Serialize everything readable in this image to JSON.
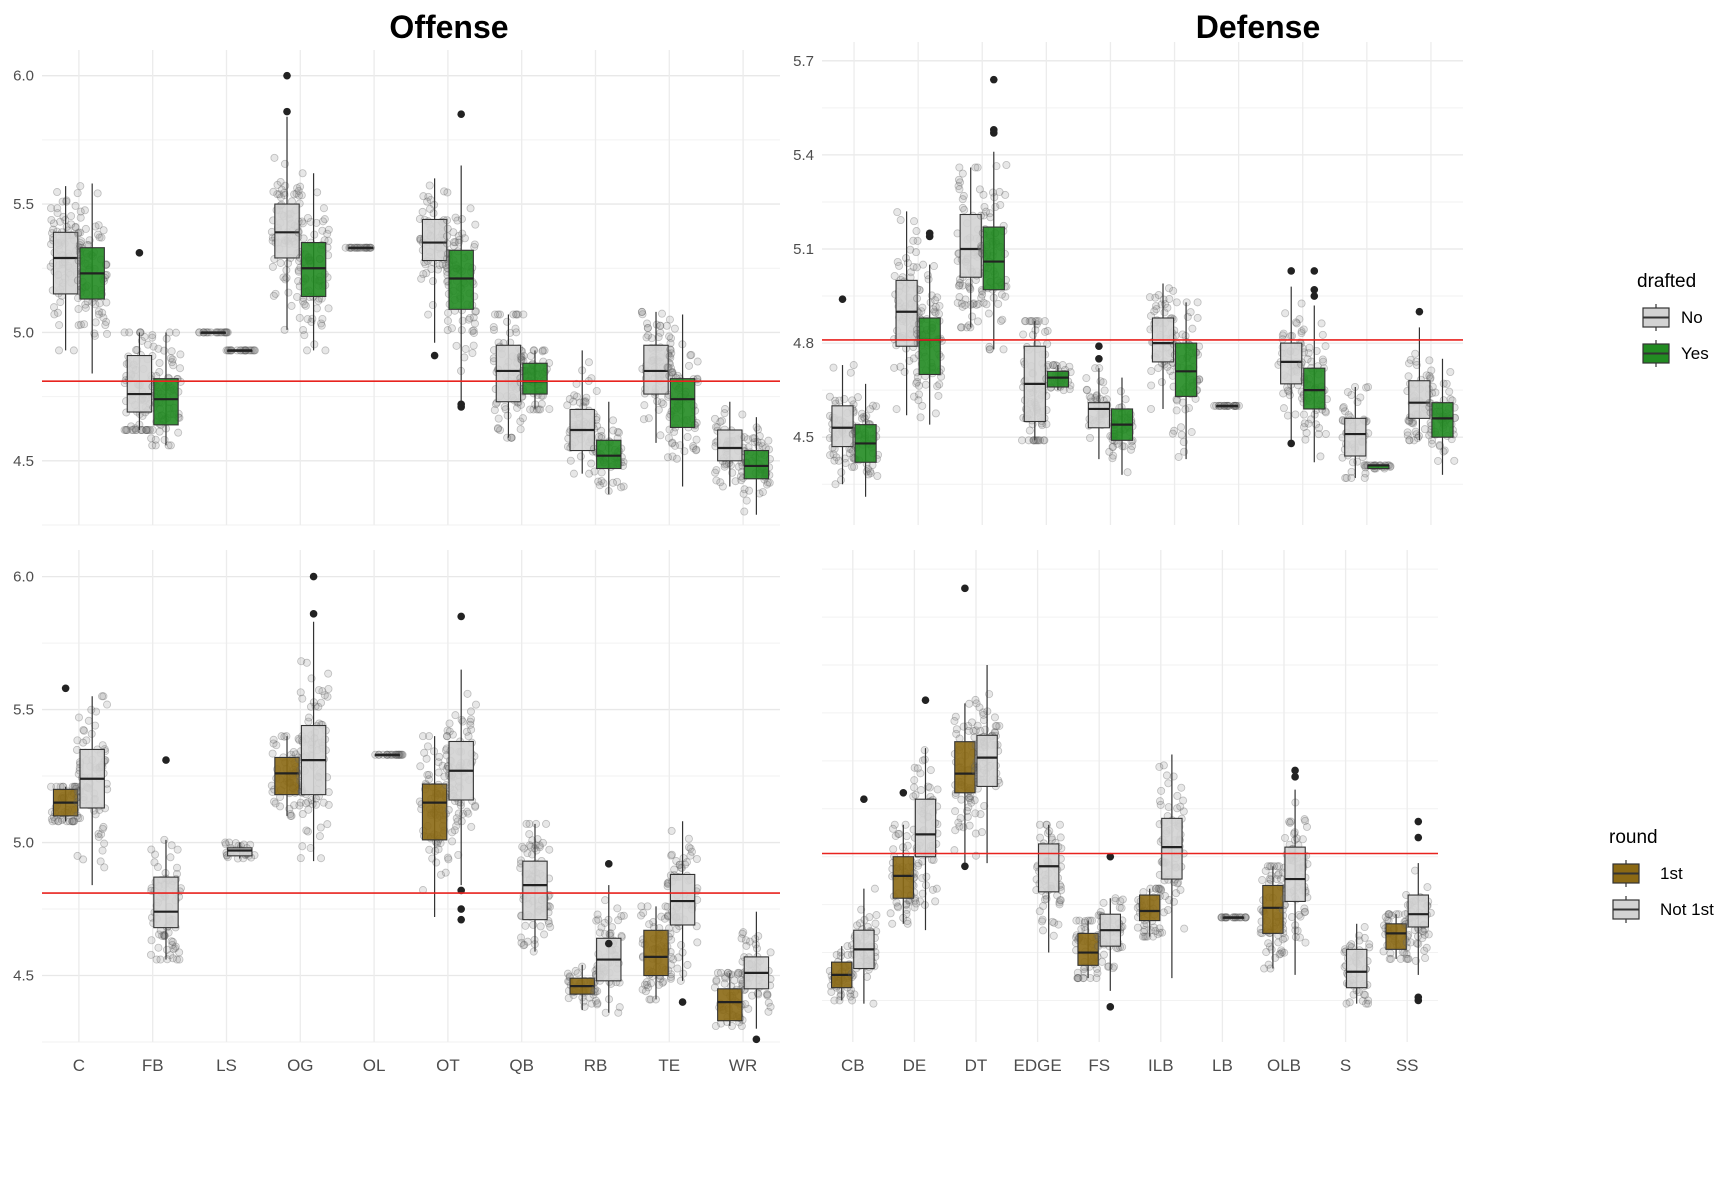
{
  "titles": {
    "offense": "Offense",
    "defense": "Defense"
  },
  "legends": {
    "drafted": {
      "title": "drafted",
      "items": [
        {
          "label": "No",
          "color": "#d3d3d3"
        },
        {
          "label": "Yes",
          "color": "#228b22"
        }
      ]
    },
    "round": {
      "title": "round",
      "items": [
        {
          "label": "1st",
          "color": "#8b6914"
        },
        {
          "label": "Not 1st",
          "color": "#d3d3d3"
        }
      ]
    }
  },
  "chart_data": [
    {
      "type": "box",
      "title": "Offense",
      "facet": "offense-drafted",
      "categories": [
        "C",
        "FB",
        "LS",
        "OG",
        "OL",
        "OT",
        "QB",
        "RB",
        "TE",
        "WR"
      ],
      "y_ticks": [
        4.5,
        5.0,
        5.5,
        6.0
      ],
      "ylim": [
        4.25,
        6.1
      ],
      "reference_line": 4.81,
      "grid": true,
      "series": [
        {
          "name": "No",
          "color": "#d3d3d3",
          "boxes": [
            {
              "cat": "C",
              "whislo": 4.93,
              "q1": 5.15,
              "med": 5.29,
              "q3": 5.39,
              "whishi": 5.57
            },
            {
              "cat": "FB",
              "whislo": 4.62,
              "q1": 4.69,
              "med": 4.76,
              "q3": 4.91,
              "whishi": 5.0,
              "outliers": [
                5.31
              ]
            },
            {
              "cat": "LS",
              "whislo": 5.0,
              "q1": 5.0,
              "med": 5.0,
              "q3": 5.0,
              "whishi": 5.0
            },
            {
              "cat": "OG",
              "whislo": 5.01,
              "q1": 5.29,
              "med": 5.39,
              "q3": 5.5,
              "whishi": 5.84,
              "outliers": [
                5.86,
                6.0
              ]
            },
            {
              "cat": "OL",
              "whislo": 5.33,
              "q1": 5.33,
              "med": 5.33,
              "q3": 5.33,
              "whishi": 5.33
            },
            {
              "cat": "OT",
              "whislo": 4.96,
              "q1": 5.28,
              "med": 5.35,
              "q3": 5.44,
              "whishi": 5.6,
              "outliers": [
                4.91
              ]
            },
            {
              "cat": "QB",
              "whislo": 4.59,
              "q1": 4.73,
              "med": 4.85,
              "q3": 4.95,
              "whishi": 5.07
            },
            {
              "cat": "RB",
              "whislo": 4.45,
              "q1": 4.54,
              "med": 4.62,
              "q3": 4.7,
              "whishi": 4.93
            },
            {
              "cat": "TE",
              "whislo": 4.57,
              "q1": 4.76,
              "med": 4.85,
              "q3": 4.95,
              "whishi": 5.08
            },
            {
              "cat": "WR",
              "whislo": 4.4,
              "q1": 4.5,
              "med": 4.55,
              "q3": 4.62,
              "whishi": 4.73
            }
          ]
        },
        {
          "name": "Yes",
          "color": "#228b22",
          "boxes": [
            {
              "cat": "C",
              "whislo": 4.84,
              "q1": 5.13,
              "med": 5.23,
              "q3": 5.33,
              "whishi": 5.58
            },
            {
              "cat": "FB",
              "whislo": 4.56,
              "q1": 4.64,
              "med": 4.74,
              "q3": 4.82,
              "whishi": 5.0
            },
            {
              "cat": "LS",
              "whislo": 4.93,
              "q1": 4.93,
              "med": 4.93,
              "q3": 4.93,
              "whishi": 4.93
            },
            {
              "cat": "OG",
              "whislo": 4.93,
              "q1": 5.14,
              "med": 5.25,
              "q3": 5.35,
              "whishi": 5.62
            },
            {
              "cat": "OT",
              "whislo": 4.72,
              "q1": 5.09,
              "med": 5.21,
              "q3": 5.32,
              "whishi": 5.65,
              "outliers": [
                4.71,
                4.72,
                5.85
              ]
            },
            {
              "cat": "QB",
              "whislo": 4.7,
              "q1": 4.76,
              "med": 4.81,
              "q3": 4.88,
              "whishi": 4.93
            },
            {
              "cat": "RB",
              "whislo": 4.37,
              "q1": 4.47,
              "med": 4.52,
              "q3": 4.58,
              "whishi": 4.73
            },
            {
              "cat": "TE",
              "whislo": 4.4,
              "q1": 4.63,
              "med": 4.74,
              "q3": 4.82,
              "whishi": 5.07
            },
            {
              "cat": "WR",
              "whislo": 4.29,
              "q1": 4.43,
              "med": 4.48,
              "q3": 4.54,
              "whishi": 4.67
            }
          ]
        }
      ]
    },
    {
      "type": "box",
      "title": "Defense",
      "facet": "defense-drafted",
      "categories": [
        "CB",
        "DE",
        "DT",
        "EDGE",
        "FS",
        "ILB",
        "LB",
        "OLB",
        "S",
        "SS"
      ],
      "y_ticks": [
        4.5,
        4.8,
        5.1,
        5.4,
        5.7
      ],
      "ylim": [
        4.22,
        5.76
      ],
      "reference_line": 4.81,
      "grid": true,
      "series": [
        {
          "name": "No",
          "color": "#d3d3d3",
          "boxes": [
            {
              "cat": "CB",
              "whislo": 4.35,
              "q1": 4.47,
              "med": 4.53,
              "q3": 4.6,
              "whishi": 4.73,
              "outliers": [
                4.94
              ]
            },
            {
              "cat": "DE",
              "whislo": 4.57,
              "q1": 4.79,
              "med": 4.9,
              "q3": 5.0,
              "whishi": 5.22
            },
            {
              "cat": "DT",
              "whislo": 4.85,
              "q1": 5.01,
              "med": 5.1,
              "q3": 5.21,
              "whishi": 5.36
            },
            {
              "cat": "EDGE",
              "whislo": 4.49,
              "q1": 4.55,
              "med": 4.67,
              "q3": 4.79,
              "whishi": 4.87
            },
            {
              "cat": "FS",
              "whislo": 4.43,
              "q1": 4.53,
              "med": 4.59,
              "q3": 4.61,
              "whishi": 4.72,
              "outliers": [
                4.75,
                4.79
              ]
            },
            {
              "cat": "ILB",
              "whislo": 4.59,
              "q1": 4.74,
              "med": 4.8,
              "q3": 4.88,
              "whishi": 4.99
            },
            {
              "cat": "LB",
              "whislo": 4.6,
              "q1": 4.6,
              "med": 4.6,
              "q3": 4.6,
              "whishi": 4.6
            },
            {
              "cat": "OLB",
              "whislo": 4.49,
              "q1": 4.67,
              "med": 4.74,
              "q3": 4.8,
              "whishi": 4.98,
              "outliers": [
                4.48,
                5.03
              ]
            },
            {
              "cat": "S",
              "whislo": 4.37,
              "q1": 4.44,
              "med": 4.51,
              "q3": 4.56,
              "whishi": 4.66
            },
            {
              "cat": "SS",
              "whislo": 4.49,
              "q1": 4.56,
              "med": 4.61,
              "q3": 4.68,
              "whishi": 4.85,
              "outliers": [
                4.9
              ]
            }
          ]
        },
        {
          "name": "Yes",
          "color": "#228b22",
          "boxes": [
            {
              "cat": "CB",
              "whislo": 4.31,
              "q1": 4.42,
              "med": 4.48,
              "q3": 4.54,
              "whishi": 4.67
            },
            {
              "cat": "DE",
              "whislo": 4.54,
              "q1": 4.7,
              "med": 4.81,
              "q3": 4.88,
              "whishi": 5.05,
              "outliers": [
                5.14,
                5.15
              ]
            },
            {
              "cat": "DT",
              "whislo": 4.78,
              "q1": 4.97,
              "med": 5.06,
              "q3": 5.17,
              "whishi": 5.41,
              "outliers": [
                5.47,
                5.48,
                5.64
              ]
            },
            {
              "cat": "EDGE",
              "whislo": 4.65,
              "q1": 4.66,
              "med": 4.69,
              "q3": 4.71,
              "whishi": 4.73
            },
            {
              "cat": "FS",
              "whislo": 4.38,
              "q1": 4.49,
              "med": 4.54,
              "q3": 4.59,
              "whishi": 4.69
            },
            {
              "cat": "ILB",
              "whislo": 4.43,
              "q1": 4.63,
              "med": 4.71,
              "q3": 4.8,
              "whishi": 4.93
            },
            {
              "cat": "OLB",
              "whislo": 4.42,
              "q1": 4.59,
              "med": 4.65,
              "q3": 4.72,
              "whishi": 4.92,
              "outliers": [
                4.95,
                4.97,
                5.03
              ]
            },
            {
              "cat": "S",
              "whislo": 4.4,
              "q1": 4.4,
              "med": 4.41,
              "q3": 4.41,
              "whishi": 4.41
            },
            {
              "cat": "SS",
              "whislo": 4.38,
              "q1": 4.5,
              "med": 4.56,
              "q3": 4.61,
              "whishi": 4.75
            }
          ]
        }
      ]
    },
    {
      "type": "box",
      "facet": "offense-round",
      "categories": [
        "C",
        "FB",
        "LS",
        "OG",
        "OL",
        "OT",
        "QB",
        "RB",
        "TE",
        "WR"
      ],
      "y_ticks": [
        4.5,
        5.0,
        5.5,
        6.0
      ],
      "ylim": [
        4.25,
        6.1
      ],
      "reference_line": 4.81,
      "grid": true,
      "series": [
        {
          "name": "1st",
          "color": "#8b6914",
          "boxes": [
            {
              "cat": "C",
              "whislo": 5.08,
              "q1": 5.1,
              "med": 5.15,
              "q3": 5.2,
              "whishi": 5.21,
              "outliers": [
                5.58
              ]
            },
            {
              "cat": "OG",
              "whislo": 5.1,
              "q1": 5.18,
              "med": 5.26,
              "q3": 5.32,
              "whishi": 5.4
            },
            {
              "cat": "OT",
              "whislo": 4.72,
              "q1": 5.01,
              "med": 5.15,
              "q3": 5.22,
              "whishi": 5.4
            },
            {
              "cat": "RB",
              "whislo": 4.37,
              "q1": 4.43,
              "med": 4.46,
              "q3": 4.49,
              "whishi": 4.54
            },
            {
              "cat": "TE",
              "whislo": 4.41,
              "q1": 4.5,
              "med": 4.57,
              "q3": 4.67,
              "whishi": 4.76
            },
            {
              "cat": "WR",
              "whislo": 4.31,
              "q1": 4.33,
              "med": 4.4,
              "q3": 4.45,
              "whishi": 4.51
            }
          ]
        },
        {
          "name": "Not 1st",
          "color": "#d3d3d3",
          "boxes": [
            {
              "cat": "C",
              "whislo": 4.84,
              "q1": 5.13,
              "med": 5.24,
              "q3": 5.35,
              "whishi": 5.55
            },
            {
              "cat": "FB",
              "whislo": 4.56,
              "q1": 4.68,
              "med": 4.74,
              "q3": 4.87,
              "whishi": 5.01,
              "outliers": [
                5.31
              ]
            },
            {
              "cat": "LS",
              "whislo": 4.94,
              "q1": 4.95,
              "med": 4.97,
              "q3": 4.98,
              "whishi": 5.0
            },
            {
              "cat": "OG",
              "whislo": 4.93,
              "q1": 5.18,
              "med": 5.31,
              "q3": 5.44,
              "whishi": 5.83,
              "outliers": [
                5.86,
                6.0
              ]
            },
            {
              "cat": "OL",
              "whislo": 5.33,
              "q1": 5.33,
              "med": 5.33,
              "q3": 5.33,
              "whishi": 5.33
            },
            {
              "cat": "OT",
              "whislo": 4.84,
              "q1": 5.16,
              "med": 5.27,
              "q3": 5.38,
              "whishi": 5.65,
              "outliers": [
                4.71,
                4.75,
                4.82,
                5.85
              ]
            },
            {
              "cat": "QB",
              "whislo": 4.59,
              "q1": 4.71,
              "med": 4.84,
              "q3": 4.93,
              "whishi": 5.07
            },
            {
              "cat": "RB",
              "whislo": 4.36,
              "q1": 4.48,
              "med": 4.56,
              "q3": 4.64,
              "whishi": 4.84,
              "outliers": [
                4.62,
                4.92
              ]
            },
            {
              "cat": "TE",
              "whislo": 4.48,
              "q1": 4.69,
              "med": 4.78,
              "q3": 4.88,
              "whishi": 5.08,
              "outliers": [
                4.4
              ]
            },
            {
              "cat": "WR",
              "whislo": 4.3,
              "q1": 4.45,
              "med": 4.51,
              "q3": 4.57,
              "whishi": 4.74,
              "outliers": [
                4.26
              ]
            }
          ]
        }
      ]
    },
    {
      "type": "box",
      "facet": "defense-round",
      "categories": [
        "CB",
        "DE",
        "DT",
        "EDGE",
        "FS",
        "ILB",
        "LB",
        "OLB",
        "S",
        "SS"
      ],
      "y_ticks": [],
      "ylim": [
        4.22,
        5.76
      ],
      "reference_line": 4.81,
      "grid": true,
      "series": [
        {
          "name": "1st",
          "color": "#8b6914",
          "boxes": [
            {
              "cat": "CB",
              "whislo": 4.35,
              "q1": 4.39,
              "med": 4.43,
              "q3": 4.47,
              "whishi": 4.52
            },
            {
              "cat": "DE",
              "whislo": 4.59,
              "q1": 4.67,
              "med": 4.74,
              "q3": 4.8,
              "whishi": 4.9,
              "outliers": [
                5.0
              ]
            },
            {
              "cat": "DT",
              "whislo": 4.77,
              "q1": 5.0,
              "med": 5.06,
              "q3": 5.16,
              "whishi": 5.28,
              "outliers": [
                4.77,
                5.64
              ]
            },
            {
              "cat": "FS",
              "whislo": 4.42,
              "q1": 4.46,
              "med": 4.5,
              "q3": 4.56,
              "whishi": 4.6
            },
            {
              "cat": "ILB",
              "whislo": 4.55,
              "q1": 4.6,
              "med": 4.63,
              "q3": 4.68,
              "whishi": 4.7
            },
            {
              "cat": "OLB",
              "whislo": 4.45,
              "q1": 4.56,
              "med": 4.64,
              "q3": 4.71,
              "whishi": 4.77
            },
            {
              "cat": "SS",
              "whislo": 4.48,
              "q1": 4.51,
              "med": 4.56,
              "q3": 4.59,
              "whishi": 4.62
            }
          ]
        },
        {
          "name": "Not 1st",
          "color": "#d3d3d3",
          "boxes": [
            {
              "cat": "CB",
              "whislo": 4.34,
              "q1": 4.45,
              "med": 4.51,
              "q3": 4.57,
              "whishi": 4.7,
              "outliers": [
                4.98
              ]
            },
            {
              "cat": "DE",
              "whislo": 4.57,
              "q1": 4.8,
              "med": 4.87,
              "q3": 4.98,
              "whishi": 5.14,
              "outliers": [
                5.29
              ]
            },
            {
              "cat": "DT",
              "whislo": 4.78,
              "q1": 5.02,
              "med": 5.11,
              "q3": 5.18,
              "whishi": 5.4
            },
            {
              "cat": "EDGE",
              "whislo": 4.5,
              "q1": 4.69,
              "med": 4.77,
              "q3": 4.84,
              "whishi": 4.9
            },
            {
              "cat": "FS",
              "whislo": 4.38,
              "q1": 4.52,
              "med": 4.57,
              "q3": 4.62,
              "whishi": 4.67,
              "outliers": [
                4.33,
                4.8
              ]
            },
            {
              "cat": "ILB",
              "whislo": 4.42,
              "q1": 4.73,
              "med": 4.83,
              "q3": 4.92,
              "whishi": 5.12
            },
            {
              "cat": "LB",
              "whislo": 4.61,
              "q1": 4.61,
              "med": 4.61,
              "q3": 4.61,
              "whishi": 4.61
            },
            {
              "cat": "OLB",
              "whislo": 4.43,
              "q1": 4.66,
              "med": 4.73,
              "q3": 4.83,
              "whishi": 5.01,
              "outliers": [
                5.05,
                5.07
              ]
            },
            {
              "cat": "S",
              "whislo": 4.34,
              "q1": 4.39,
              "med": 4.44,
              "q3": 4.51,
              "whishi": 4.59
            },
            {
              "cat": "SS",
              "whislo": 4.43,
              "q1": 4.58,
              "med": 4.62,
              "q3": 4.68,
              "whishi": 4.78,
              "outliers": [
                4.35,
                4.36,
                4.86,
                4.91
              ]
            }
          ]
        }
      ]
    }
  ]
}
